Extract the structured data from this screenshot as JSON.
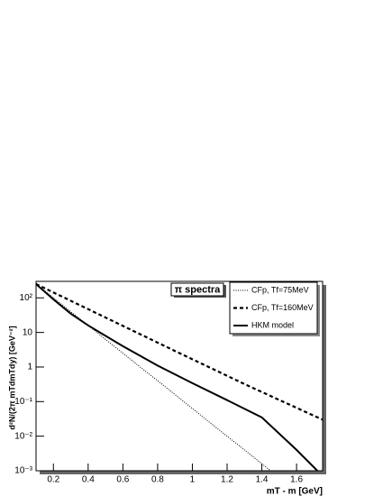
{
  "chart_data": {
    "type": "line",
    "title": "π spectra",
    "x_label": "mT - m [GeV]",
    "y_label": "d²N/(2π mTdmTdy) [GeV⁻²]",
    "xlim": [
      0.1,
      1.75
    ],
    "xticks": [
      0.2,
      0.4,
      0.6,
      0.8,
      1,
      1.2,
      1.4,
      1.6
    ],
    "ylim": [
      0.001,
      300
    ],
    "y_log": true,
    "yticks": [
      {
        "value": 0.001,
        "label": "10⁻³"
      },
      {
        "value": 0.01,
        "label": "10⁻²"
      },
      {
        "value": 0.1,
        "label": "10⁻¹"
      },
      1,
      10,
      {
        "value": 100,
        "label": "10²"
      }
    ],
    "legend": "top-right",
    "series": [
      {
        "name": "CFp, Tf=75MeV",
        "color": "#000000",
        "style": "dotted",
        "x": [
          0.1,
          0.2,
          0.3,
          0.4,
          0.5,
          0.6,
          0.7,
          0.8,
          0.9,
          1.0,
          1.1,
          1.2,
          1.3,
          1.4,
          1.45
        ],
        "values": [
          250,
          100,
          40,
          16,
          6.3,
          2.5,
          1.0,
          0.4,
          0.16,
          0.063,
          0.025,
          0.01,
          0.004,
          0.0016,
          0.001
        ]
      },
      {
        "name": "CFp, Tf=160MeV",
        "color": "#000000",
        "style": "dashed",
        "x": [
          0.1,
          0.5,
          0.9,
          1.3,
          1.75
        ],
        "values": [
          250,
          27,
          2.9,
          0.32,
          0.03
        ]
      },
      {
        "name": "HKM model",
        "color": "#000000",
        "style": "solid",
        "x": [
          0.1,
          0.2,
          0.3,
          0.4,
          0.5,
          0.6,
          0.8,
          1.0,
          1.2,
          1.4,
          1.6,
          1.72
        ],
        "values": [
          250,
          90,
          35,
          16,
          8,
          4,
          1.1,
          0.34,
          0.11,
          0.035,
          0.004,
          0.001
        ]
      }
    ]
  }
}
